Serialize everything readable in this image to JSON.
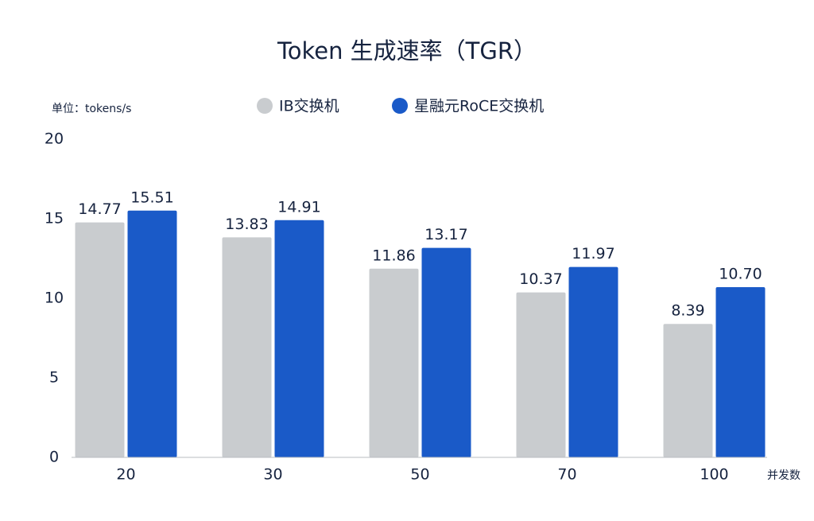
{
  "chart_data": {
    "type": "bar",
    "title": "Token 生成速率（TGR）",
    "unit_label": "单位：tokens/s",
    "x_label": "并发数",
    "categories": [
      "20",
      "30",
      "50",
      "70",
      "100"
    ],
    "series": [
      {
        "name": "IB交换机",
        "color": "#c9cccf",
        "values": [
          14.77,
          13.83,
          11.86,
          10.37,
          8.39
        ],
        "value_labels": [
          "14.77",
          "13.83",
          "11.86",
          "10.37",
          "8.39"
        ]
      },
      {
        "name": "星融元RoCE交换机",
        "color": "#1a5ac8",
        "values": [
          15.51,
          14.91,
          13.17,
          11.97,
          10.7
        ],
        "value_labels": [
          "15.51",
          "14.91",
          "13.17",
          "11.97",
          "10.70"
        ]
      }
    ],
    "ylim": [
      0,
      20
    ],
    "yticks": [
      0,
      5,
      10,
      15,
      20
    ],
    "grid": false
  }
}
